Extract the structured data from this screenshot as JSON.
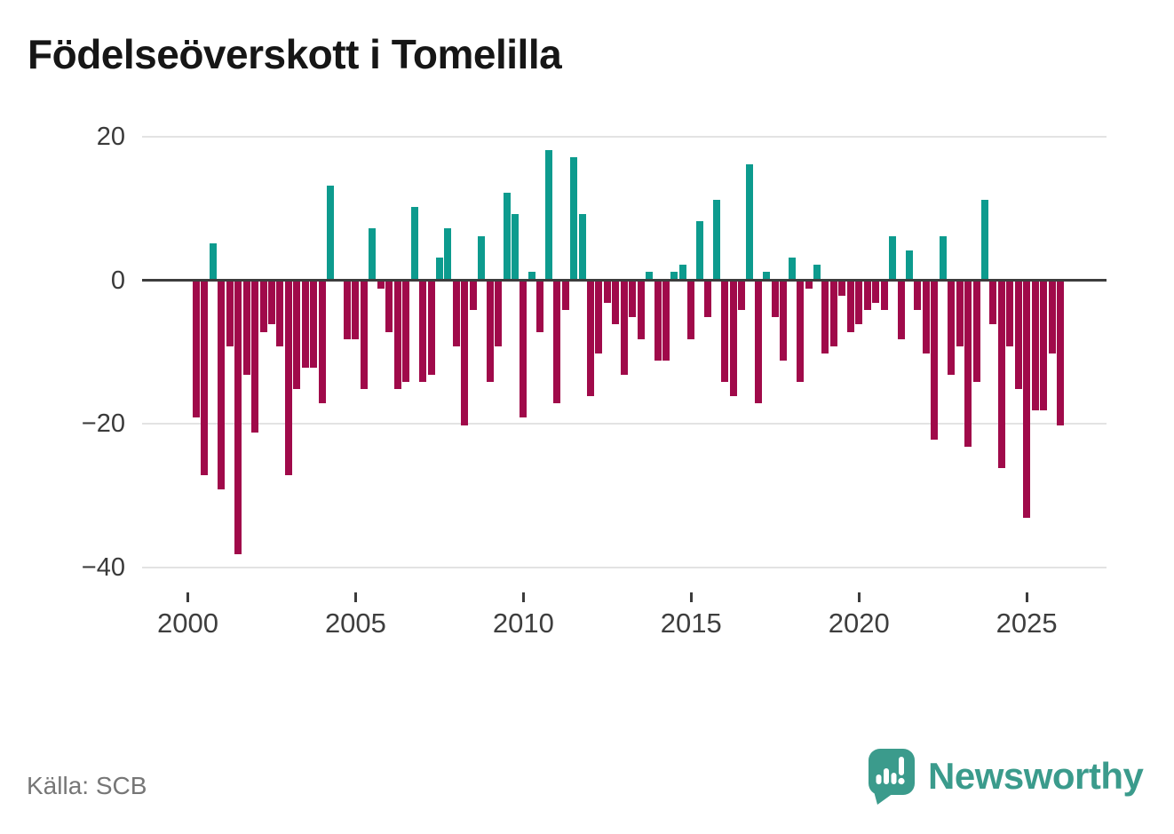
{
  "title": "Födelseöverskott i Tomelilla",
  "y_axis": {
    "labels": [
      "20",
      "0",
      "−20",
      "−40"
    ],
    "values": [
      20,
      0,
      -20,
      -40
    ]
  },
  "x_axis": {
    "labels": [
      "2000",
      "2005",
      "2010",
      "2015",
      "2020",
      "2025"
    ]
  },
  "footer": {
    "source": "Källa: SCB",
    "brand": "Newsworthy"
  },
  "colors": {
    "positive": "#0d9b8e",
    "negative": "#a00a4a",
    "zero_line": "#3d3d3d",
    "gridline": "#e3e3e3",
    "brand_teal": "#3b9b8c",
    "title_text": "#161616",
    "axis_text": "#3e3e3e",
    "source_text": "#767676"
  },
  "chart_data": {
    "type": "bar",
    "title": "Födelseöverskott i Tomelilla",
    "xlabel": "",
    "ylabel": "",
    "ylim": [
      -40,
      20
    ],
    "y_gridlines": [
      20,
      0,
      -20,
      -40
    ],
    "x_tick_labels": [
      "2000",
      "2005",
      "2010",
      "2015",
      "2020",
      "2025"
    ],
    "grid": true,
    "legend": false,
    "quarterly": [
      {
        "year": 2000,
        "q": [
          -19,
          -27,
          5,
          -29
        ]
      },
      {
        "year": 2001,
        "q": [
          -9,
          -38,
          -13,
          -21
        ]
      },
      {
        "year": 2002,
        "q": [
          -7,
          -6,
          -9,
          -27
        ]
      },
      {
        "year": 2003,
        "q": [
          -15,
          -12,
          -12,
          -17
        ]
      },
      {
        "year": 2004,
        "q": [
          13,
          0,
          -8,
          -8
        ]
      },
      {
        "year": 2005,
        "q": [
          -15,
          7,
          -1,
          -7
        ]
      },
      {
        "year": 2006,
        "q": [
          -15,
          -14,
          10,
          -14
        ]
      },
      {
        "year": 2007,
        "q": [
          -13,
          3,
          7,
          -9
        ]
      },
      {
        "year": 2008,
        "q": [
          -20,
          -4,
          6,
          -14
        ]
      },
      {
        "year": 2009,
        "q": [
          -9,
          12,
          9,
          -19
        ]
      },
      {
        "year": 2010,
        "q": [
          1,
          -7,
          18,
          -17
        ]
      },
      {
        "year": 2011,
        "q": [
          -4,
          17,
          9,
          -16
        ]
      },
      {
        "year": 2012,
        "q": [
          -10,
          -3,
          -6,
          -13
        ]
      },
      {
        "year": 2013,
        "q": [
          -5,
          -8,
          1,
          -11
        ]
      },
      {
        "year": 2014,
        "q": [
          -11,
          1,
          2,
          -8
        ]
      },
      {
        "year": 2015,
        "q": [
          8,
          -5,
          11,
          -14
        ]
      },
      {
        "year": 2016,
        "q": [
          -16,
          -4,
          16,
          -17
        ]
      },
      {
        "year": 2017,
        "q": [
          1,
          -5,
          -11,
          3
        ]
      },
      {
        "year": 2018,
        "q": [
          -14,
          -1,
          2,
          -10
        ]
      },
      {
        "year": 2019,
        "q": [
          -9,
          -2,
          -7,
          -6
        ]
      },
      {
        "year": 2020,
        "q": [
          -4,
          -3,
          -4,
          6
        ]
      },
      {
        "year": 2021,
        "q": [
          -8,
          4,
          -4,
          -10
        ]
      },
      {
        "year": 2022,
        "q": [
          -22,
          6,
          -13,
          -9
        ]
      },
      {
        "year": 2023,
        "q": [
          -23,
          -14,
          11,
          -6
        ]
      },
      {
        "year": 2024,
        "q": [
          -26,
          -9,
          -15,
          -33
        ]
      },
      {
        "year": 2025,
        "q": [
          -18,
          -18,
          -10,
          -20
        ]
      }
    ]
  }
}
